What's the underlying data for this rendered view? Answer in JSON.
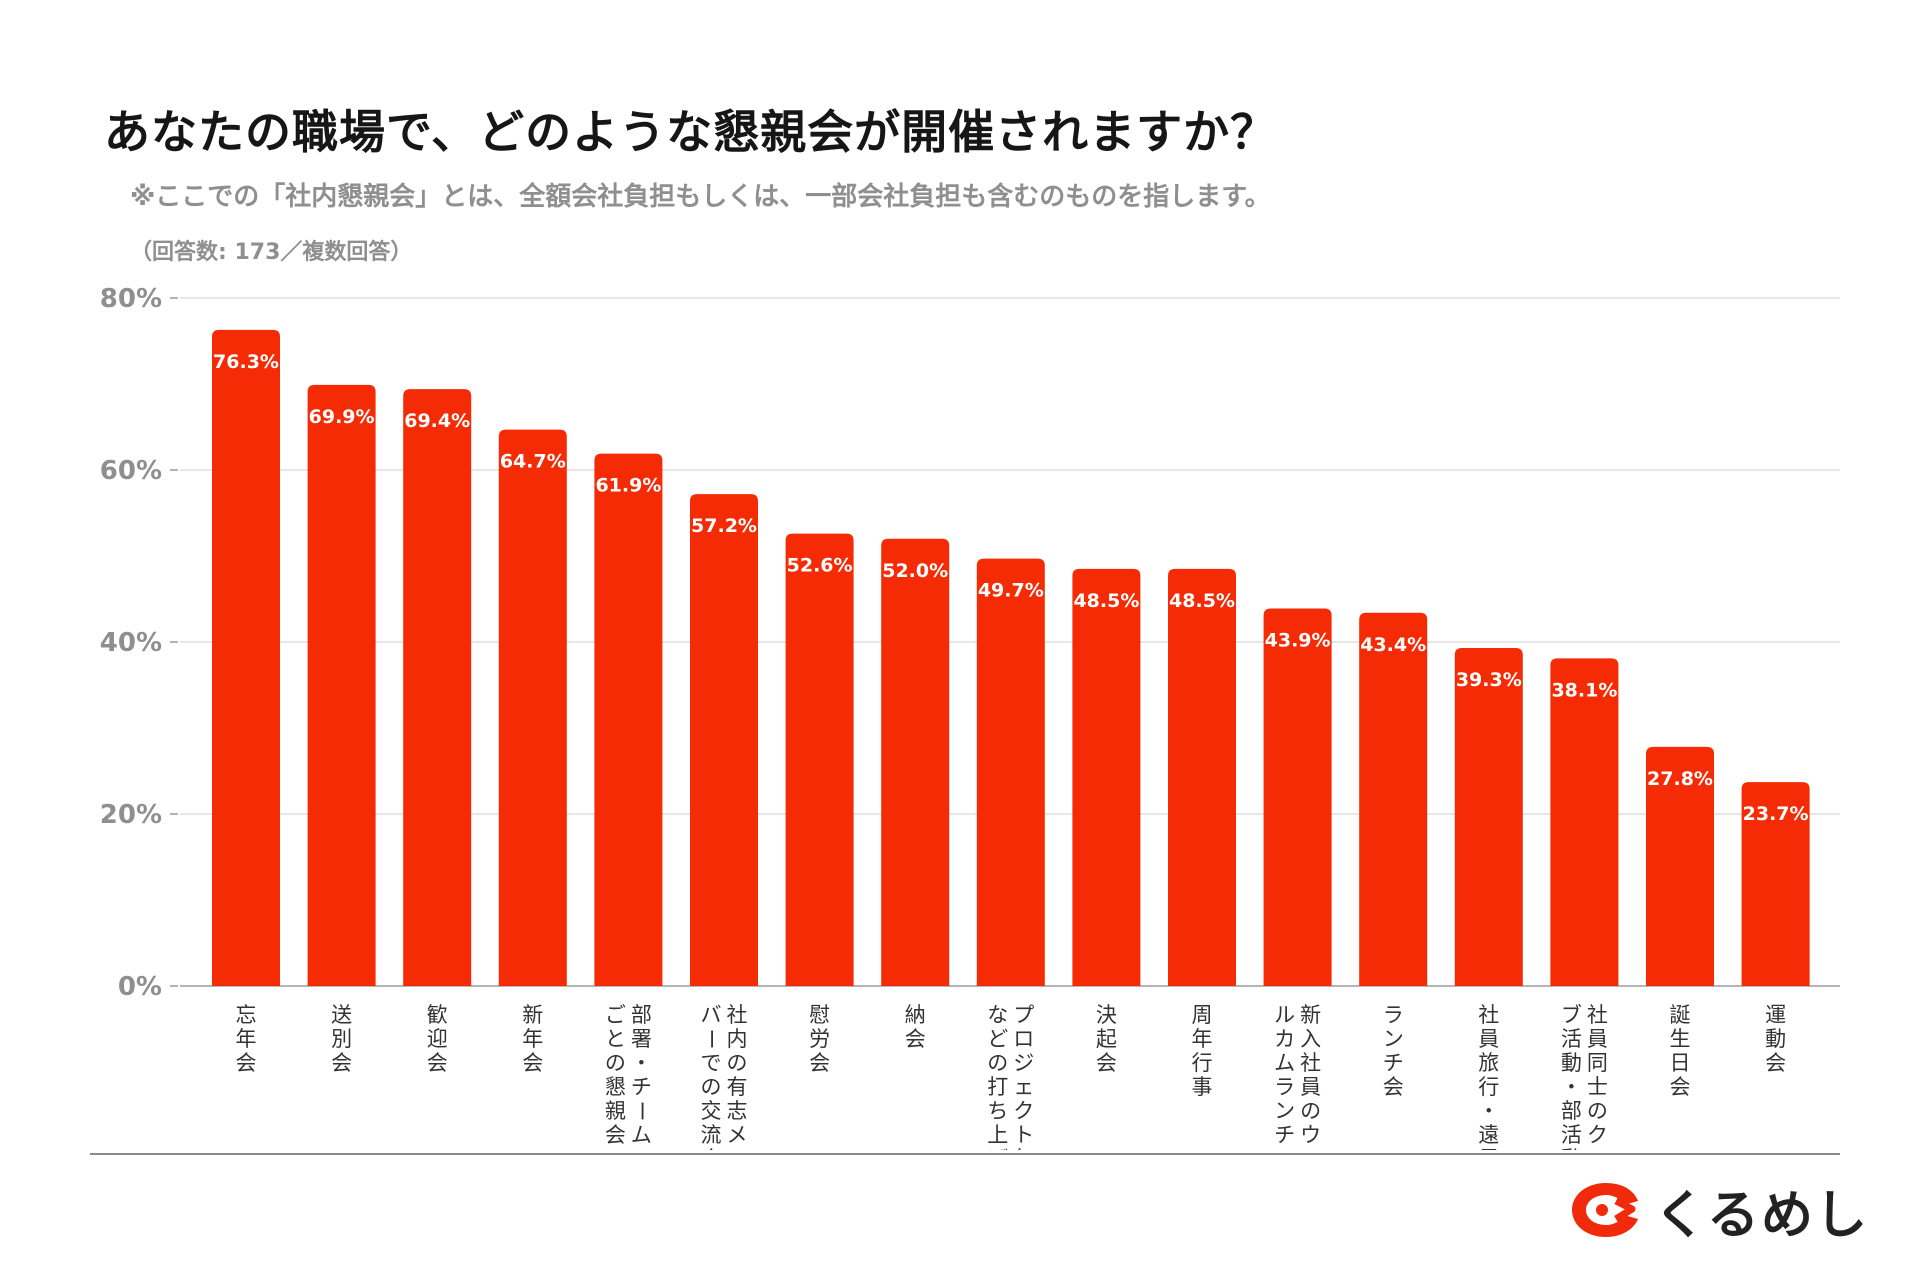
{
  "header": {
    "title": "あなたの職場で、どのような懇親会が開催されますか？",
    "subtitle": "※ここでの「社内懇親会」とは、全額会社負担もしくは、一部会社負担も含むのものを指します。",
    "responses": "（回答数: 173／複数回答）"
  },
  "brand": {
    "name": "くるめし",
    "logo_icon": "kurumeshi-logo-icon",
    "color": "#f02a0a"
  },
  "colors": {
    "bar": "#f42b04",
    "grid": "#dddddd",
    "axis_text": "#8f8f8f",
    "label_text": "#ffffff"
  },
  "chart_data": {
    "type": "bar",
    "categories": [
      "忘年会",
      "送別会",
      "歓迎会",
      "新年会",
      "部署・チームごとの懇親会",
      "社内の有志メンバーでの交流会",
      "慰労会",
      "納会",
      "プロジェクト毎などの打ち上げ",
      "決起会",
      "周年行事",
      "新入社員のウェルカムランチ",
      "ランチ会",
      "社員旅行・遠足",
      "社員同士のクラブ活動・部活動",
      "誕生日会",
      "運動会"
    ],
    "category_lines": [
      [
        "忘年会"
      ],
      [
        "送別会"
      ],
      [
        "歓迎会"
      ],
      [
        "新年会"
      ],
      [
        "部署・チーム",
        "ごとの懇親会"
      ],
      [
        "社内の有志メン",
        "バーでの交流会"
      ],
      [
        "慰労会"
      ],
      [
        "納会"
      ],
      [
        "プロジェクト毎",
        "などの打ち上げ"
      ],
      [
        "決起会"
      ],
      [
        "周年行事"
      ],
      [
        "新入社員のウェ",
        "ルカムランチ"
      ],
      [
        "ランチ会"
      ],
      [
        "社員旅行・遠足"
      ],
      [
        "社員同士のクラ",
        "ブ活動・部活動"
      ],
      [
        "誕生日会"
      ],
      [
        "運動会"
      ]
    ],
    "values": [
      76.3,
      69.9,
      69.4,
      64.7,
      61.9,
      57.2,
      52.6,
      52.0,
      49.7,
      48.5,
      48.5,
      43.9,
      43.4,
      39.3,
      38.1,
      27.8,
      23.7
    ],
    "value_labels": [
      "76.3%",
      "69.9%",
      "69.4%",
      "64.7%",
      "61.9%",
      "57.2%",
      "52.6%",
      "52.0%",
      "49.7%",
      "48.5%",
      "48.5%",
      "43.9%",
      "43.4%",
      "39.3%",
      "38.1%",
      "27.8%",
      "23.7%"
    ],
    "yticks": [
      0,
      20,
      40,
      60,
      80
    ],
    "ytick_labels": [
      "0%",
      "20%",
      "40%",
      "60%",
      "80%"
    ],
    "ylim": [
      0,
      80
    ],
    "grid": true,
    "xlabel": "",
    "ylabel": ""
  }
}
